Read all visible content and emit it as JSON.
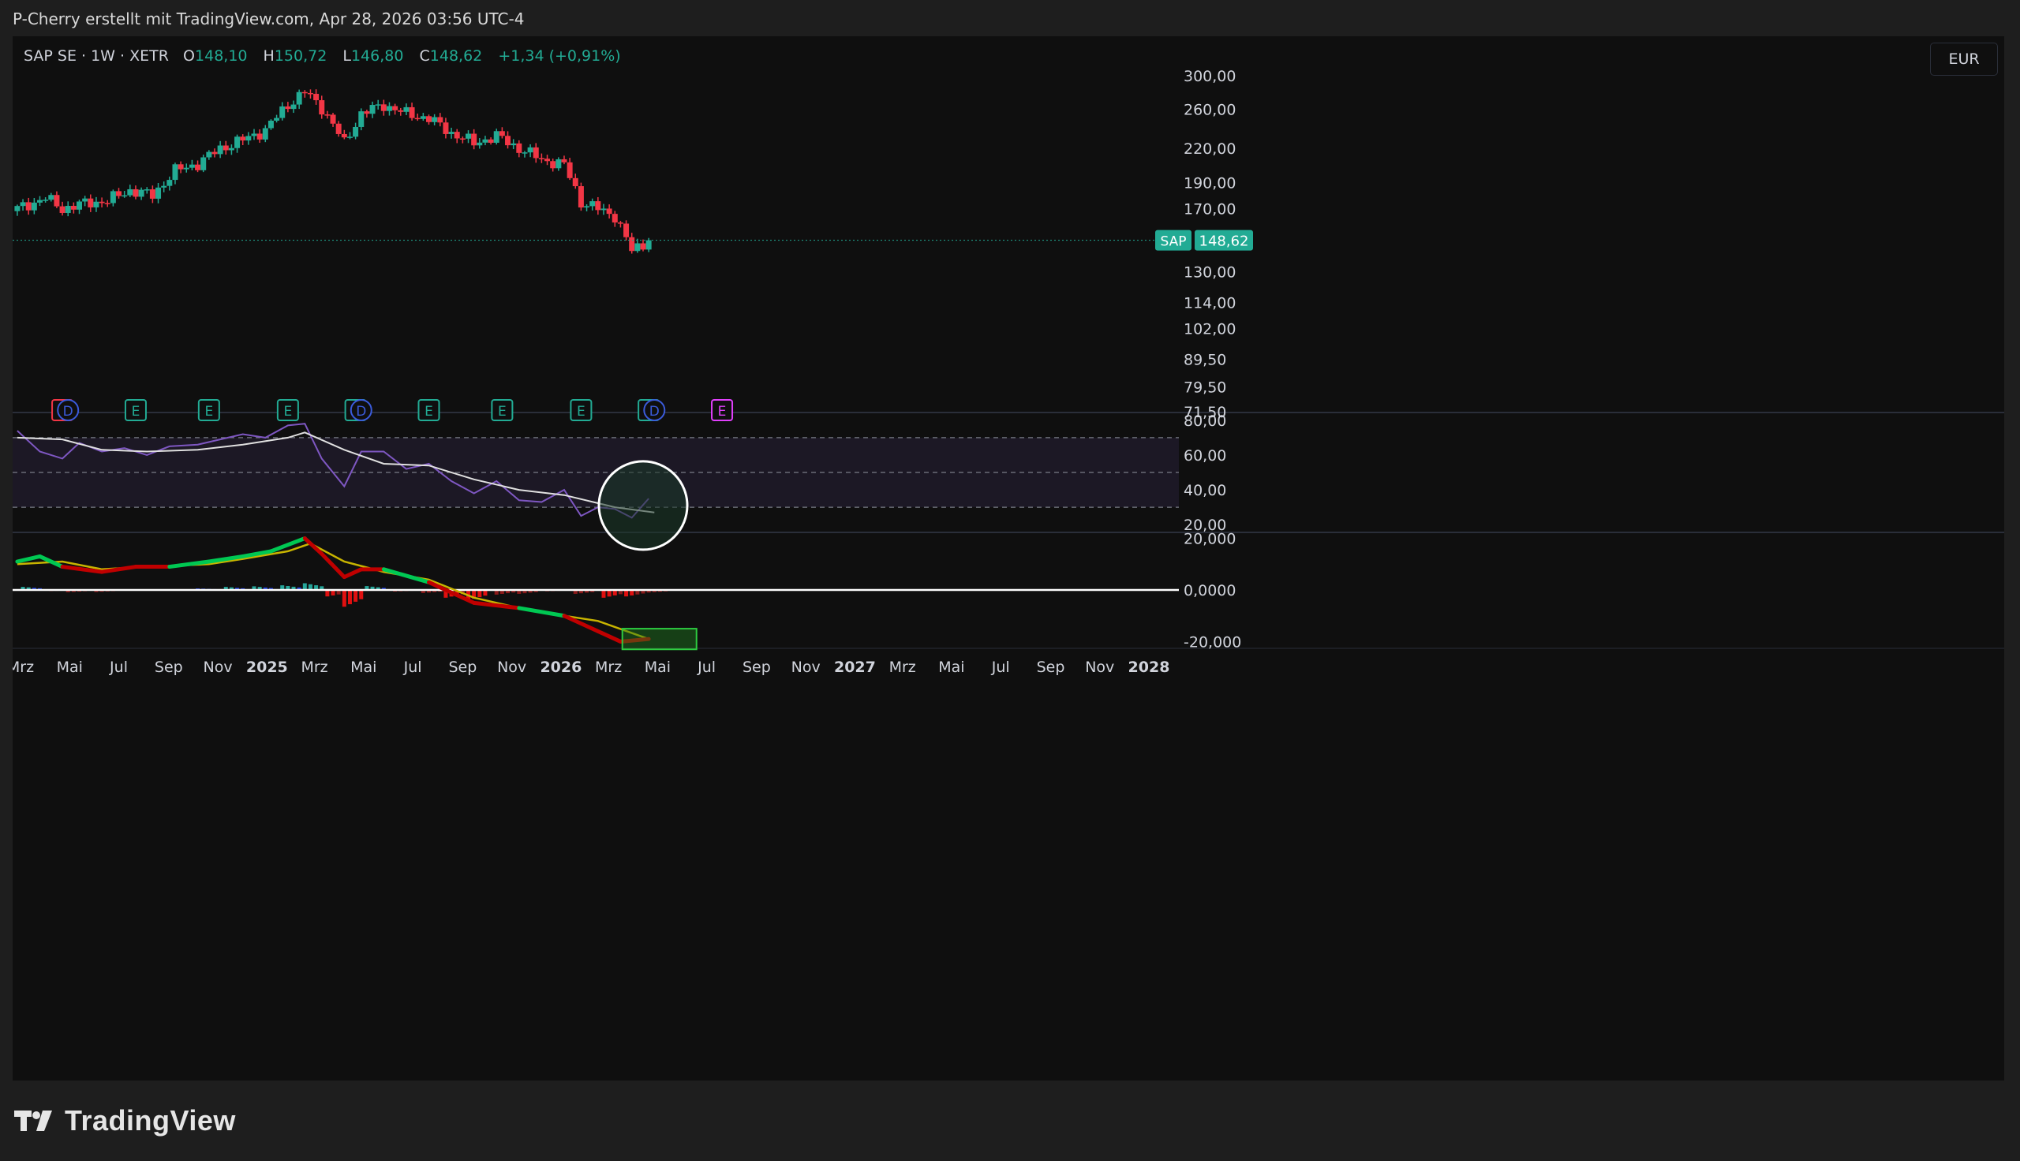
{
  "header": {
    "caption": "P-Cherry erstellt mit TradingView.com, Apr 28, 2026 03:56 UTC-4"
  },
  "legend": {
    "symbol": "SAP SE · 1W · XETR",
    "o_label": "O",
    "o_value": "148,10",
    "h_label": "H",
    "h_value": "150,72",
    "l_label": "L",
    "l_value": "146,80",
    "c_label": "C",
    "c_value": "148,62",
    "change": "+1,34 (+0,91%)"
  },
  "currency": "EUR",
  "price_badge": {
    "ticker": "SAP",
    "price": "148,62"
  },
  "brand": {
    "name": "TradingView"
  },
  "colors": {
    "up": "#22ab94",
    "down": "#f23645",
    "macd_up": "#00c853",
    "macd_down": "#c00000",
    "signal": "#c8b400",
    "rsi": "#7e57c2"
  },
  "chart_data": [
    {
      "type": "candlestick",
      "title": "SAP SE · 1W · XETR",
      "scale": "log",
      "x": [
        "2024-03",
        "2028-01"
      ],
      "ylim": [
        71.5,
        300
      ],
      "y_ticks": [
        "300,00",
        "260,00",
        "220,00",
        "190,00",
        "170,00",
        "130,00",
        "114,00",
        "102,00",
        "89,50",
        "79,50",
        "71,50"
      ],
      "y_tick_values": [
        300,
        260,
        220,
        190,
        170,
        130,
        114,
        102,
        89.5,
        79.5,
        71.5
      ],
      "x_ticks": [
        "Mrz",
        "Mai",
        "Jul",
        "Sep",
        "Nov",
        "2025",
        "Mrz",
        "Mai",
        "Jul",
        "Sep",
        "Nov",
        "2026",
        "Mrz",
        "Mai",
        "Jul",
        "Sep",
        "Nov",
        "2027",
        "Mrz",
        "Mai",
        "Jul",
        "Sep",
        "Nov",
        "2028"
      ],
      "x_tick_dates": [
        "2024-03-01",
        "2024-05-01",
        "2024-07-01",
        "2024-09-01",
        "2024-11-01",
        "2025-01-01",
        "2025-03-01",
        "2025-05-01",
        "2025-07-01",
        "2025-09-01",
        "2025-11-01",
        "2026-01-01",
        "2026-03-01",
        "2026-05-01",
        "2026-07-01",
        "2026-09-01",
        "2026-11-01",
        "2027-01-01",
        "2027-03-01",
        "2027-05-01",
        "2027-07-01",
        "2027-09-01",
        "2027-11-01",
        "2028-01-01"
      ],
      "close_path": [
        [
          "2024-02-26",
          170
        ],
        [
          "2024-04-01",
          178
        ],
        [
          "2024-04-22",
          170
        ],
        [
          "2024-05-20",
          174
        ],
        [
          "2024-06-17",
          176
        ],
        [
          "2024-07-15",
          184
        ],
        [
          "2024-08-12",
          180
        ],
        [
          "2024-09-09",
          200
        ],
        [
          "2024-10-07",
          206
        ],
        [
          "2024-11-04",
          220
        ],
        [
          "2024-12-02",
          228
        ],
        [
          "2024-12-30",
          238
        ],
        [
          "2025-01-27",
          265
        ],
        [
          "2025-02-17",
          280
        ],
        [
          "2025-03-10",
          262
        ],
        [
          "2025-04-07",
          225
        ],
        [
          "2025-04-28",
          255
        ],
        [
          "2025-05-26",
          265
        ],
        [
          "2025-06-23",
          255
        ],
        [
          "2025-07-21",
          250
        ],
        [
          "2025-08-18",
          235
        ],
        [
          "2025-09-15",
          225
        ],
        [
          "2025-10-13",
          232
        ],
        [
          "2025-11-10",
          220
        ],
        [
          "2025-12-08",
          210
        ],
        [
          "2026-01-05",
          205
        ],
        [
          "2026-01-26",
          175
        ],
        [
          "2026-02-16",
          170
        ],
        [
          "2026-03-09",
          165
        ],
        [
          "2026-03-30",
          142
        ],
        [
          "2026-04-20",
          148.62
        ]
      ],
      "last_price": 148.62,
      "event_markers": [
        {
          "date": "2024-04-22",
          "label": "E"
        },
        {
          "date": "2024-04-29",
          "label": "D"
        },
        {
          "date": "2024-07-22",
          "label": "E"
        },
        {
          "date": "2024-10-21",
          "label": "E"
        },
        {
          "date": "2025-01-27",
          "label": "E"
        },
        {
          "date": "2025-04-21",
          "label": "E"
        },
        {
          "date": "2025-04-28",
          "label": "D"
        },
        {
          "date": "2025-07-21",
          "label": "E"
        },
        {
          "date": "2025-10-20",
          "label": "E"
        },
        {
          "date": "2026-01-26",
          "label": "E"
        },
        {
          "date": "2026-04-20",
          "label": "E"
        },
        {
          "date": "2026-04-27",
          "label": "D"
        },
        {
          "date": "2026-07-20",
          "label": "E"
        }
      ]
    },
    {
      "type": "line",
      "ylim": [
        16,
        84
      ],
      "y_ticks": [
        "80,00",
        "60,00",
        "40,00",
        "20,00"
      ],
      "y_tick_values": [
        80,
        60,
        40,
        20
      ],
      "band": [
        30,
        70
      ],
      "midline": 50,
      "series": [
        {
          "points": [
            [
              "2024-02-26",
              74
            ],
            [
              "2024-03-25",
              62
            ],
            [
              "2024-04-22",
              58
            ],
            [
              "2024-05-13",
              67
            ],
            [
              "2024-06-10",
              62
            ],
            [
              "2024-07-08",
              64
            ],
            [
              "2024-08-05",
              60
            ],
            [
              "2024-09-02",
              65
            ],
            [
              "2024-10-07",
              66
            ],
            [
              "2024-11-04",
              69
            ],
            [
              "2024-12-02",
              72
            ],
            [
              "2024-12-30",
              70
            ],
            [
              "2025-01-27",
              77
            ],
            [
              "2025-02-17",
              78
            ],
            [
              "2025-03-10",
              58
            ],
            [
              "2025-04-07",
              42
            ],
            [
              "2025-04-28",
              62
            ],
            [
              "2025-05-26",
              62
            ],
            [
              "2025-06-23",
              52
            ],
            [
              "2025-07-21",
              55
            ],
            [
              "2025-08-18",
              45
            ],
            [
              "2025-09-15",
              38
            ],
            [
              "2025-10-13",
              45
            ],
            [
              "2025-11-10",
              34
            ],
            [
              "2025-12-08",
              33
            ],
            [
              "2026-01-05",
              40
            ],
            [
              "2026-01-26",
              25
            ],
            [
              "2026-02-16",
              30
            ],
            [
              "2026-03-09",
              29
            ],
            [
              "2026-03-30",
              24
            ],
            [
              "2026-04-20",
              35
            ]
          ]
        },
        {
          "points": [
            [
              "2024-02-26",
              70
            ],
            [
              "2024-04-22",
              69
            ],
            [
              "2024-06-10",
              63
            ],
            [
              "2024-08-05",
              62
            ],
            [
              "2024-10-07",
              63
            ],
            [
              "2024-12-02",
              66
            ],
            [
              "2025-01-27",
              70
            ],
            [
              "2025-02-17",
              73
            ],
            [
              "2025-04-07",
              63
            ],
            [
              "2025-05-26",
              55
            ],
            [
              "2025-07-21",
              54
            ],
            [
              "2025-09-15",
              46
            ],
            [
              "2025-11-10",
              40
            ],
            [
              "2026-01-05",
              37
            ],
            [
              "2026-03-09",
              30
            ],
            [
              "2026-04-27",
              27
            ]
          ]
        }
      ]
    },
    {
      "type": "line",
      "ylim": [
        -22,
        22
      ],
      "y_ticks": [
        "20,000",
        "0,0000",
        "-20,000"
      ],
      "y_tick_values": [
        20,
        0,
        -20
      ],
      "series": [
        {
          "points": [
            [
              "2024-02-26",
              11
            ],
            [
              "2024-03-25",
              13
            ],
            [
              "2024-04-22",
              9
            ],
            [
              "2024-06-10",
              7
            ],
            [
              "2024-07-22",
              9
            ],
            [
              "2024-09-02",
              9
            ],
            [
              "2024-10-21",
              11
            ],
            [
              "2024-12-02",
              13
            ],
            [
              "2025-01-06",
              15
            ],
            [
              "2025-02-17",
              20
            ],
            [
              "2025-03-10",
              14
            ],
            [
              "2025-04-07",
              5
            ],
            [
              "2025-04-28",
              8
            ],
            [
              "2025-05-26",
              8
            ],
            [
              "2025-07-21",
              3
            ],
            [
              "2025-09-15",
              -5
            ],
            [
              "2025-11-10",
              -7
            ],
            [
              "2026-01-05",
              -10
            ],
            [
              "2026-02-16",
              -16
            ],
            [
              "2026-03-16",
              -20
            ],
            [
              "2026-04-20",
              -19
            ]
          ]
        },
        {
          "points": [
            [
              "2024-02-26",
              10
            ],
            [
              "2024-04-22",
              11
            ],
            [
              "2024-06-10",
              8
            ],
            [
              "2024-08-05",
              9
            ],
            [
              "2024-10-21",
              10
            ],
            [
              "2024-12-02",
              12
            ],
            [
              "2025-01-27",
              15
            ],
            [
              "2025-02-24",
              18
            ],
            [
              "2025-04-07",
              11
            ],
            [
              "2025-05-26",
              7
            ],
            [
              "2025-07-21",
              4
            ],
            [
              "2025-09-15",
              -3
            ],
            [
              "2025-11-10",
              -7
            ],
            [
              "2026-01-05",
              -10
            ],
            [
              "2026-02-16",
              -12
            ],
            [
              "2026-04-20",
              -19
            ]
          ]
        }
      ],
      "histogram": [
        [
          "2024-03-04",
          1.2
        ],
        [
          "2024-04-08",
          -0.4
        ],
        [
          "2024-04-29",
          -0.9
        ],
        [
          "2024-06-03",
          -0.8
        ],
        [
          "2024-07-08",
          0.3
        ],
        [
          "2024-09-02",
          0.2
        ],
        [
          "2024-10-07",
          0.6
        ],
        [
          "2024-11-11",
          1.2
        ],
        [
          "2024-12-16",
          1.4
        ],
        [
          "2025-01-20",
          1.8
        ],
        [
          "2025-02-17",
          2.6
        ],
        [
          "2025-03-17",
          -2.5
        ],
        [
          "2025-04-07",
          -6.5
        ],
        [
          "2025-05-05",
          1.5
        ],
        [
          "2025-06-09",
          -0.6
        ],
        [
          "2025-07-14",
          -1.2
        ],
        [
          "2025-08-11",
          -3.0
        ],
        [
          "2025-09-08",
          -4.0
        ],
        [
          "2025-10-13",
          -1.8
        ],
        [
          "2025-11-10",
          -1.5
        ],
        [
          "2025-12-15",
          -0.5
        ],
        [
          "2026-01-19",
          -1.5
        ],
        [
          "2026-02-23",
          -3.0
        ],
        [
          "2026-03-23",
          -2.5
        ],
        [
          "2026-04-20",
          -1.0
        ]
      ]
    }
  ]
}
